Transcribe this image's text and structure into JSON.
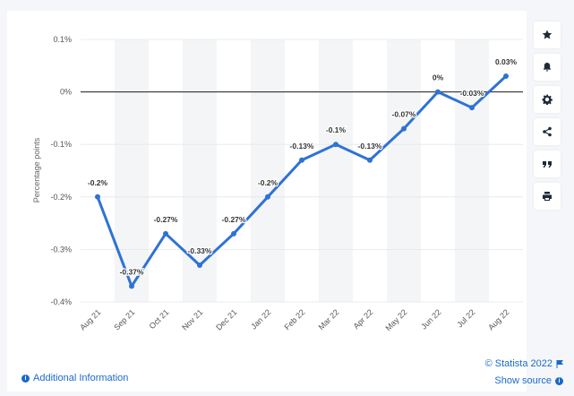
{
  "chart_data": {
    "type": "line",
    "categories": [
      "Aug 21",
      "Sep 21",
      "Oct 21",
      "Nov 21",
      "Dec 21",
      "Jan 22",
      "Feb 22",
      "Mar 22",
      "Apr 22",
      "May 22",
      "Jun 22",
      "Jul 22",
      "Aug 22"
    ],
    "values": [
      -0.2,
      -0.37,
      -0.27,
      -0.33,
      -0.27,
      -0.2,
      -0.13,
      -0.1,
      -0.13,
      -0.07,
      0,
      -0.03,
      0.03
    ],
    "data_labels": [
      "-0.2%",
      "-0.37%",
      "-0.27%",
      "-0.33%",
      "-0.27%",
      "-0.2%",
      "-0.13%",
      "-0.1%",
      "-0.13%",
      "-0.07%",
      "0%",
      "-0.03%",
      "0.03%"
    ],
    "ylabel": "Percentage points",
    "ylim": [
      -0.4,
      0.1
    ],
    "yticks": [
      0.1,
      0,
      -0.1,
      -0.2,
      -0.3,
      -0.4
    ],
    "ytick_labels": [
      "0.1%",
      "0%",
      "-0.1%",
      "-0.2%",
      "-0.3%",
      "-0.4%"
    ],
    "grid": true,
    "colors": {
      "line": "#2f72d4",
      "zero_line": "#1a1a1a",
      "band": "#f4f5f7"
    }
  },
  "sidebar": [
    {
      "icon": "star-icon"
    },
    {
      "icon": "bell-icon"
    },
    {
      "icon": "gear-icon"
    },
    {
      "icon": "share-icon"
    },
    {
      "icon": "quote-icon"
    },
    {
      "icon": "print-icon"
    }
  ],
  "footer": {
    "additional_info": "Additional Information",
    "credit": "© Statista 2022",
    "show_source": "Show source"
  }
}
